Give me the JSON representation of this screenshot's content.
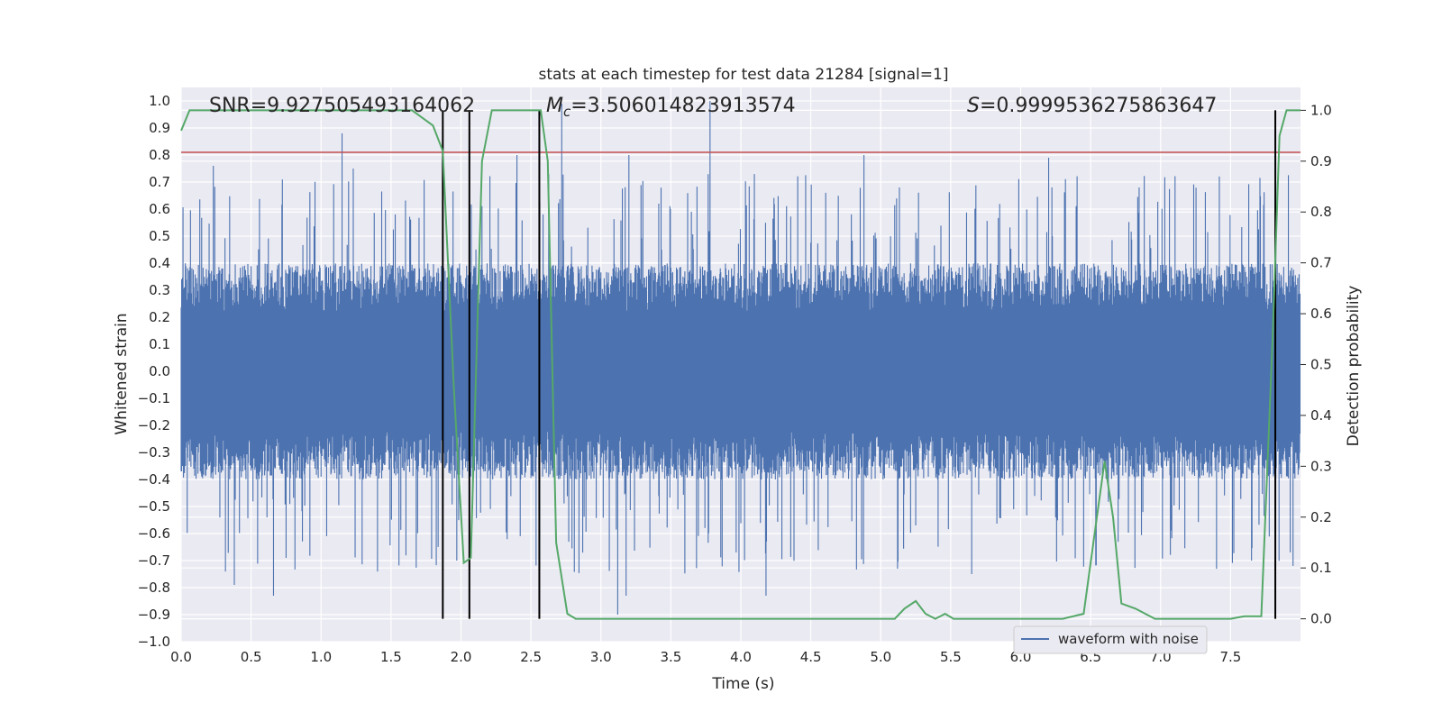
{
  "chart_data": {
    "type": "line",
    "title": "stats at each timestep for test data 21284 [signal=1]",
    "xlabel": "Time (s)",
    "ylabel": "Whitened strain",
    "y2label": "Detection probability",
    "xlim": [
      0.0,
      8.0
    ],
    "ylim": [
      -1.0,
      1.05
    ],
    "y2lim": [
      -0.045,
      1.045
    ],
    "x_ticks": [
      0.0,
      0.5,
      1.0,
      1.5,
      2.0,
      2.5,
      3.0,
      3.5,
      4.0,
      4.5,
      5.0,
      5.5,
      6.0,
      6.5,
      7.0,
      7.5
    ],
    "x_tick_labels": [
      "0.0",
      "0.5",
      "1.0",
      "1.5",
      "2.0",
      "2.5",
      "3.0",
      "3.5",
      "4.0",
      "4.5",
      "5.0",
      "5.5",
      "6.0",
      "6.5",
      "7.0",
      "7.5"
    ],
    "y_ticks": [
      1.0,
      0.9,
      0.8,
      0.7,
      0.6,
      0.5,
      0.4,
      0.3,
      0.2,
      0.1,
      0.0,
      -0.1,
      -0.2,
      -0.3,
      -0.4,
      -0.5,
      -0.6,
      -0.7,
      -0.8,
      -0.9,
      -1.0
    ],
    "y_tick_labels": [
      "1.0",
      "0.9",
      "0.8",
      "0.7",
      "0.6",
      "0.5",
      "0.4",
      "0.3",
      "0.2",
      "0.1",
      "0.0",
      "−0.1",
      "−0.2",
      "−0.3",
      "−0.4",
      "−0.5",
      "−0.6",
      "−0.7",
      "−0.8",
      "−0.9",
      "−1.0"
    ],
    "y2_ticks": [
      1.0,
      0.9,
      0.8,
      0.7,
      0.6,
      0.5,
      0.4,
      0.3,
      0.2,
      0.1,
      0.0
    ],
    "y2_tick_labels": [
      "1.0",
      "0.9",
      "0.8",
      "0.7",
      "0.6",
      "0.5",
      "0.4",
      "0.3",
      "0.2",
      "0.1",
      "0.0"
    ],
    "annotations": {
      "snr": "SNR=9.927505493164062",
      "mc_symbol": "M",
      "mc_subscript": "c",
      "mc_value": "=3.506014823913574",
      "s_symbol": "S",
      "s_value": "=0.9999536275863647"
    },
    "threshold": {
      "y": 0.81,
      "color": "#c44e52"
    },
    "vertical_lines": [
      1.87,
      2.06,
      2.56,
      7.82
    ],
    "waveform": {
      "name": "waveform with noise",
      "color": "#4c72b0",
      "envelope": 0.4,
      "peaks": [
        {
          "x": 0.23,
          "y": 0.76
        },
        {
          "x": 1.15,
          "y": 0.88
        },
        {
          "x": 1.23,
          "y": 0.75
        },
        {
          "x": 2.4,
          "y": 0.8
        },
        {
          "x": 2.72,
          "y": 0.99
        },
        {
          "x": 3.2,
          "y": 0.8
        },
        {
          "x": 3.78,
          "y": 1.0
        },
        {
          "x": 4.88,
          "y": 0.8
        },
        {
          "x": 6.2,
          "y": 0.79
        },
        {
          "x": 0.66,
          "y": -0.83
        },
        {
          "x": 3.12,
          "y": -0.9
        },
        {
          "x": 3.18,
          "y": -0.83
        },
        {
          "x": 4.18,
          "y": -0.83
        },
        {
          "x": 0.38,
          "y": -0.79
        },
        {
          "x": 1.97,
          "y": -0.7
        },
        {
          "x": 5.65,
          "y": -0.75
        },
        {
          "x": 7.65,
          "y": -0.7
        }
      ]
    },
    "probability": {
      "name": "Detection probability",
      "color": "#55a868",
      "x": [
        0.0,
        0.06,
        0.3,
        0.6,
        0.9,
        1.2,
        1.5,
        1.65,
        1.8,
        1.87,
        1.95,
        2.02,
        2.07,
        2.15,
        2.22,
        2.4,
        2.52,
        2.57,
        2.62,
        2.68,
        2.76,
        2.82,
        3.0,
        3.3,
        3.5,
        3.9,
        4.5,
        4.7,
        4.9,
        5.1,
        5.17,
        5.25,
        5.32,
        5.39,
        5.46,
        5.52,
        5.6,
        5.7,
        5.9,
        6.1,
        6.3,
        6.45,
        6.52,
        6.6,
        6.66,
        6.72,
        6.82,
        6.96,
        7.0,
        7.2,
        7.5,
        7.6,
        7.72,
        7.8,
        7.85,
        7.9,
        7.93,
        8.0
      ],
      "y": [
        0.96,
        1.0,
        1.0,
        1.0,
        1.0,
        1.0,
        1.0,
        1.0,
        0.97,
        0.92,
        0.45,
        0.11,
        0.12,
        0.9,
        1.0,
        1.0,
        1.0,
        1.0,
        0.9,
        0.15,
        0.01,
        0.0,
        0.0,
        0.0,
        0.0,
        0.0,
        0.0,
        0.0,
        0.0,
        0.0,
        0.02,
        0.035,
        0.01,
        0.0,
        0.01,
        0.0,
        0.0,
        0.0,
        0.0,
        0.0,
        0.0,
        0.01,
        0.15,
        0.31,
        0.2,
        0.03,
        0.02,
        0.0,
        0.0,
        0.0,
        0.0,
        0.005,
        0.005,
        0.55,
        0.95,
        1.0,
        1.0,
        1.0
      ]
    },
    "legend": {
      "position": "bottom-right",
      "entries": [
        "waveform with noise"
      ]
    },
    "grid": true
  },
  "colors": {
    "plot_bg": "#eaeaf2",
    "grid": "#ffffff",
    "text": "#262626"
  }
}
